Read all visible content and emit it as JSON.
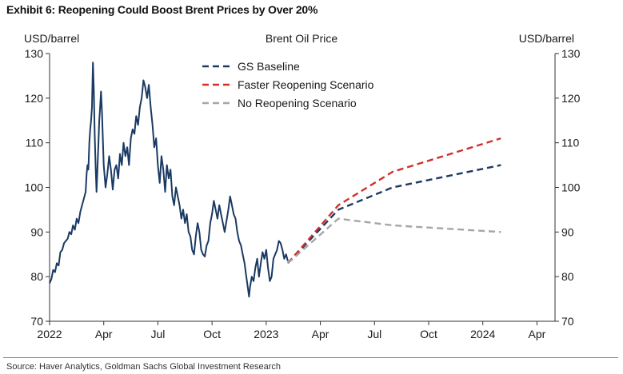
{
  "exhibit_title": "Exhibit 6: Reopening Could Boost Brent Prices by Over 20%",
  "source": "Source: Haver Analytics, Goldman Sachs Global Investment Research",
  "chart_data": {
    "type": "line",
    "title": "Brent Oil Price",
    "ylabel_left": "USD/barrel",
    "ylabel_right": "USD/barrel",
    "ylim": [
      70,
      130
    ],
    "yticks": [
      70,
      80,
      90,
      100,
      110,
      120,
      130
    ],
    "xlim": [
      0,
      28
    ],
    "x_unit": "months since Jan 2022",
    "xticks": [
      {
        "x": 0,
        "label": "2022"
      },
      {
        "x": 3,
        "label": "Apr"
      },
      {
        "x": 6,
        "label": "Jul"
      },
      {
        "x": 9,
        "label": "Oct"
      },
      {
        "x": 12,
        "label": "2023"
      },
      {
        "x": 15,
        "label": "Apr"
      },
      {
        "x": 18,
        "label": "Jul"
      },
      {
        "x": 21,
        "label": "Oct"
      },
      {
        "x": 24,
        "label": "2024"
      },
      {
        "x": 27,
        "label": "Apr"
      }
    ],
    "legend_position": "top-center",
    "series": [
      {
        "name": "Brent Oil Price (history)",
        "style": "solid",
        "color": "#1b3a63",
        "in_legend": false,
        "points": [
          [
            0.0,
            78.5
          ],
          [
            0.1,
            79.5
          ],
          [
            0.2,
            81.5
          ],
          [
            0.3,
            81.0
          ],
          [
            0.4,
            83.0
          ],
          [
            0.5,
            82.5
          ],
          [
            0.6,
            85.5
          ],
          [
            0.7,
            86.0
          ],
          [
            0.8,
            87.5
          ],
          [
            0.9,
            88.0
          ],
          [
            1.0,
            88.5
          ],
          [
            1.1,
            90.0
          ],
          [
            1.2,
            89.5
          ],
          [
            1.3,
            91.5
          ],
          [
            1.4,
            90.5
          ],
          [
            1.5,
            93.0
          ],
          [
            1.6,
            92.0
          ],
          [
            1.7,
            94.5
          ],
          [
            1.8,
            96.0
          ],
          [
            1.9,
            97.5
          ],
          [
            2.0,
            99.0
          ],
          [
            2.05,
            103.0
          ],
          [
            2.1,
            105.0
          ],
          [
            2.15,
            104.0
          ],
          [
            2.2,
            110.0
          ],
          [
            2.25,
            113.0
          ],
          [
            2.3,
            115.0
          ],
          [
            2.35,
            118.0
          ],
          [
            2.4,
            128.0
          ],
          [
            2.45,
            122.0
          ],
          [
            2.5,
            112.0
          ],
          [
            2.55,
            104.5
          ],
          [
            2.6,
            99.0
          ],
          [
            2.65,
            104.0
          ],
          [
            2.7,
            109.0
          ],
          [
            2.75,
            115.0
          ],
          [
            2.8,
            118.0
          ],
          [
            2.85,
            121.5
          ],
          [
            2.9,
            117.0
          ],
          [
            2.95,
            111.0
          ],
          [
            3.0,
            105.0
          ],
          [
            3.1,
            100.0
          ],
          [
            3.2,
            103.0
          ],
          [
            3.3,
            107.0
          ],
          [
            3.4,
            104.0
          ],
          [
            3.5,
            99.5
          ],
          [
            3.6,
            104.0
          ],
          [
            3.7,
            105.0
          ],
          [
            3.8,
            102.0
          ],
          [
            3.9,
            107.5
          ],
          [
            4.0,
            105.0
          ],
          [
            4.1,
            110.0
          ],
          [
            4.2,
            107.0
          ],
          [
            4.3,
            109.0
          ],
          [
            4.4,
            105.0
          ],
          [
            4.5,
            111.0
          ],
          [
            4.6,
            113.0
          ],
          [
            4.7,
            112.0
          ],
          [
            4.8,
            116.0
          ],
          [
            4.9,
            114.0
          ],
          [
            5.0,
            118.0
          ],
          [
            5.1,
            120.0
          ],
          [
            5.2,
            124.0
          ],
          [
            5.3,
            122.5
          ],
          [
            5.4,
            120.0
          ],
          [
            5.5,
            123.0
          ],
          [
            5.6,
            118.0
          ],
          [
            5.7,
            114.0
          ],
          [
            5.8,
            109.0
          ],
          [
            5.9,
            111.0
          ],
          [
            6.0,
            105.0
          ],
          [
            6.1,
            101.0
          ],
          [
            6.2,
            107.0
          ],
          [
            6.3,
            104.0
          ],
          [
            6.4,
            99.0
          ],
          [
            6.5,
            105.0
          ],
          [
            6.6,
            102.0
          ],
          [
            6.7,
            104.0
          ],
          [
            6.8,
            98.0
          ],
          [
            6.9,
            96.0
          ],
          [
            7.0,
            100.0
          ],
          [
            7.1,
            98.0
          ],
          [
            7.2,
            96.0
          ],
          [
            7.3,
            93.0
          ],
          [
            7.4,
            95.0
          ],
          [
            7.5,
            92.0
          ],
          [
            7.6,
            94.0
          ],
          [
            7.7,
            90.0
          ],
          [
            7.8,
            89.0
          ],
          [
            7.9,
            86.0
          ],
          [
            8.0,
            85.0
          ],
          [
            8.1,
            89.0
          ],
          [
            8.2,
            92.0
          ],
          [
            8.3,
            90.0
          ],
          [
            8.4,
            86.0
          ],
          [
            8.5,
            85.0
          ],
          [
            8.6,
            84.5
          ],
          [
            8.7,
            87.0
          ],
          [
            8.8,
            88.0
          ],
          [
            8.9,
            92.0
          ],
          [
            9.0,
            94.0
          ],
          [
            9.1,
            97.0
          ],
          [
            9.2,
            95.0
          ],
          [
            9.3,
            93.0
          ],
          [
            9.4,
            96.0
          ],
          [
            9.5,
            94.0
          ],
          [
            9.6,
            92.0
          ],
          [
            9.7,
            90.0
          ],
          [
            9.8,
            92.5
          ],
          [
            9.9,
            95.0
          ],
          [
            10.0,
            98.0
          ],
          [
            10.1,
            96.0
          ],
          [
            10.2,
            94.0
          ],
          [
            10.3,
            93.0
          ],
          [
            10.4,
            90.0
          ],
          [
            10.5,
            88.0
          ],
          [
            10.6,
            87.0
          ],
          [
            10.7,
            85.0
          ],
          [
            10.8,
            83.0
          ],
          [
            10.9,
            80.0
          ],
          [
            11.0,
            77.0
          ],
          [
            11.05,
            75.5
          ],
          [
            11.1,
            77.5
          ],
          [
            11.2,
            80.0
          ],
          [
            11.3,
            79.0
          ],
          [
            11.4,
            82.0
          ],
          [
            11.5,
            84.0
          ],
          [
            11.6,
            80.0
          ],
          [
            11.7,
            83.0
          ],
          [
            11.8,
            85.5
          ],
          [
            11.9,
            84.0
          ],
          [
            12.0,
            86.0
          ],
          [
            12.1,
            82.0
          ],
          [
            12.2,
            79.0
          ],
          [
            12.3,
            80.0
          ],
          [
            12.4,
            84.0
          ],
          [
            12.5,
            85.0
          ],
          [
            12.6,
            86.0
          ],
          [
            12.7,
            88.0
          ],
          [
            12.8,
            87.5
          ],
          [
            12.9,
            86.0
          ],
          [
            13.0,
            84.0
          ],
          [
            13.1,
            85.0
          ],
          [
            13.2,
            83.5
          ]
        ]
      },
      {
        "name": "GS Baseline",
        "style": "dashed",
        "color": "#1b3a63",
        "in_legend": true,
        "points": [
          [
            13.2,
            83.0
          ],
          [
            16.0,
            95.0
          ],
          [
            19.0,
            100.0
          ],
          [
            25.0,
            105.0
          ]
        ]
      },
      {
        "name": "Faster Reopening Scenario",
        "style": "dashed",
        "color": "#d0302b",
        "in_legend": true,
        "points": [
          [
            13.2,
            83.0
          ],
          [
            16.0,
            96.0
          ],
          [
            19.0,
            103.5
          ],
          [
            25.0,
            111.0
          ]
        ]
      },
      {
        "name": "No Reopening Scenario",
        "style": "dashed",
        "color": "#a6a6a6",
        "in_legend": true,
        "points": [
          [
            13.2,
            83.0
          ],
          [
            16.0,
            93.0
          ],
          [
            19.0,
            91.5
          ],
          [
            25.0,
            90.0
          ]
        ]
      }
    ]
  }
}
